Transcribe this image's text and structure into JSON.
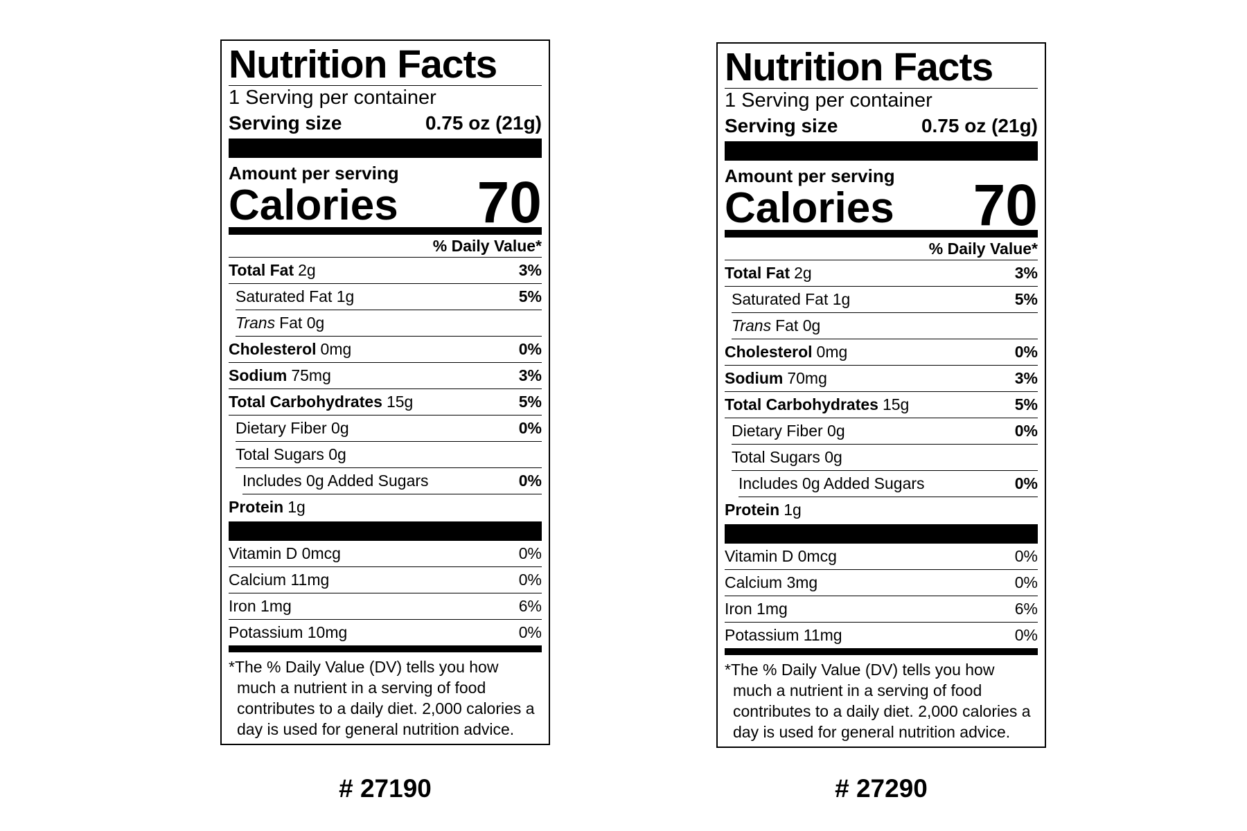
{
  "labels": [
    {
      "title": "Nutrition Facts",
      "servings": "1 Serving per container",
      "serving_size_label": "Serving size",
      "serving_size": "0.75 oz (21g)",
      "amount_per_serving": "Amount per serving",
      "calories_label": "Calories",
      "calories": "70",
      "dv_header": "% Daily Value*",
      "nutrients": [
        {
          "name": "Total Fat",
          "amount": "2g",
          "dv": "3%"
        },
        {
          "name": "Saturated Fat 1g",
          "dv": "5%"
        },
        {
          "italic": "Trans",
          "name": "Fat 0g"
        },
        {
          "name": "Cholesterol",
          "amount": "0mg",
          "dv": "0%"
        },
        {
          "name": "Sodium",
          "amount": "75mg",
          "dv": "3%"
        },
        {
          "name": "Total Carbohydrates",
          "amount": "15g",
          "dv": "5%"
        },
        {
          "name": "Dietary Fiber 0g",
          "dv": "0%"
        },
        {
          "name": "Total Sugars 0g"
        },
        {
          "name": "Includes 0g Added Sugars",
          "dv": "0%"
        },
        {
          "name": "Protein",
          "amount": "1g"
        }
      ],
      "vitamins": [
        {
          "name": "Vitamin D 0mcg",
          "dv": "0%"
        },
        {
          "name": "Calcium 11mg",
          "dv": "0%"
        },
        {
          "name": "Iron 1mg",
          "dv": "6%"
        },
        {
          "name": "Potassium 10mg",
          "dv": "0%"
        }
      ],
      "footnote": "*The % Daily Value (DV) tells you how much a nutrient in a serving of food contributes to a daily diet. 2,000 calories a day is used for general nutrition advice.",
      "code": "# 27190"
    },
    {
      "title": "Nutrition Facts",
      "servings": "1 Serving per container",
      "serving_size_label": "Serving size",
      "serving_size": "0.75 oz (21g)",
      "amount_per_serving": "Amount per serving",
      "calories_label": "Calories",
      "calories": "70",
      "dv_header": "% Daily Value*",
      "nutrients": [
        {
          "name": "Total Fat",
          "amount": "2g",
          "dv": "3%"
        },
        {
          "name": "Saturated Fat 1g",
          "dv": "5%"
        },
        {
          "italic": "Trans",
          "name": "Fat 0g"
        },
        {
          "name": "Cholesterol",
          "amount": "0mg",
          "dv": "0%"
        },
        {
          "name": "Sodium",
          "amount": "70mg",
          "dv": "3%"
        },
        {
          "name": "Total Carbohydrates",
          "amount": "15g",
          "dv": "5%"
        },
        {
          "name": "Dietary Fiber 0g",
          "dv": "0%"
        },
        {
          "name": "Total Sugars 0g"
        },
        {
          "name": "Includes 0g Added Sugars",
          "dv": "0%"
        },
        {
          "name": "Protein",
          "amount": "1g"
        }
      ],
      "vitamins": [
        {
          "name": "Vitamin D 0mcg",
          "dv": "0%"
        },
        {
          "name": "Calcium 3mg",
          "dv": "0%"
        },
        {
          "name": "Iron 1mg",
          "dv": "6%"
        },
        {
          "name": "Potassium 11mg",
          "dv": "0%"
        }
      ],
      "footnote": "*The % Daily Value (DV) tells you how much a nutrient in a serving of food contributes to a daily diet. 2,000 calories a day is used for general nutrition advice.",
      "code": "# 27290"
    }
  ]
}
